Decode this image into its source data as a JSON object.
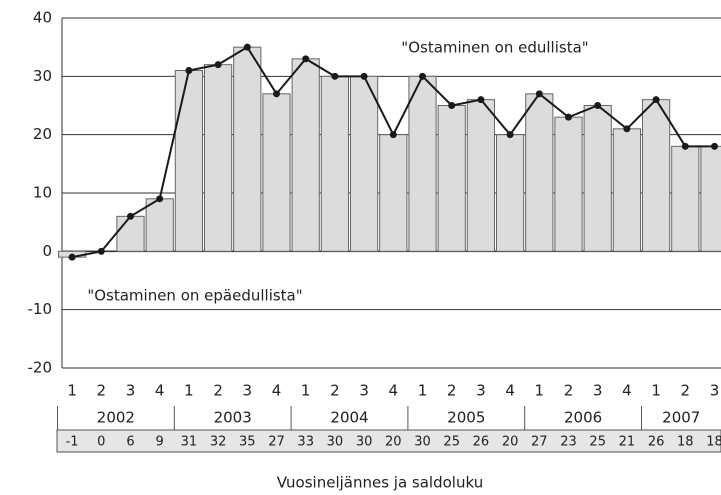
{
  "chart_data": {
    "type": "combo",
    "categories": [
      "1",
      "2",
      "3",
      "4",
      "1",
      "2",
      "3",
      "4",
      "1",
      "2",
      "3",
      "4",
      "1",
      "2",
      "3",
      "4",
      "1",
      "2",
      "3",
      "4",
      "1",
      "2",
      "3"
    ],
    "years": [
      "2002",
      "2003",
      "2004",
      "2005",
      "2006",
      "2007"
    ],
    "values": [
      -1,
      0,
      6,
      9,
      31,
      32,
      35,
      27,
      33,
      30,
      30,
      20,
      30,
      25,
      26,
      20,
      27,
      23,
      25,
      21,
      26,
      18,
      18
    ],
    "bar_color": "#dcdcdc",
    "line_color": "#1a1a1a",
    "ylim": [
      -20,
      40
    ],
    "yticks": [
      -20,
      -10,
      0,
      10,
      20,
      30,
      40
    ],
    "grid": true,
    "annotations": [
      "\"Ostaminen on edullista\"",
      "\"Ostaminen on epäedullista\""
    ],
    "xlabel": "Vuosineljännes ja saldoluku"
  }
}
